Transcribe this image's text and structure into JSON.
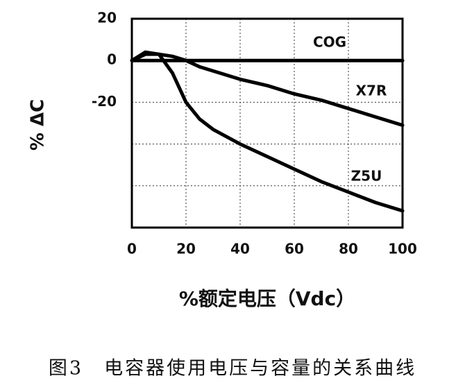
{
  "chart_data": {
    "type": "line",
    "caption": "图3　电容器使用电压与容量的关系曲线",
    "xlabel": "%额定电压（Vdc）",
    "ylabel": "% ΔC",
    "x": [
      0,
      5,
      10,
      15,
      20,
      25,
      30,
      40,
      50,
      60,
      70,
      80,
      90,
      100
    ],
    "series": [
      {
        "name": "COG",
        "color": "#000000",
        "values": [
          0,
          0,
          0,
          0,
          0,
          0,
          0,
          0,
          0,
          0,
          0,
          0,
          0,
          0
        ]
      },
      {
        "name": "X7R",
        "color": "#000000",
        "values": [
          0,
          3,
          3,
          2,
          0,
          -3,
          -5,
          -9,
          -12,
          -16,
          -19,
          -23,
          -27,
          -31
        ]
      },
      {
        "name": "Z5U",
        "color": "#000000",
        "values": [
          0,
          4,
          3,
          -6,
          -20,
          -28,
          -33,
          -40,
          -46,
          -52,
          -58,
          -63,
          -68,
          -72
        ]
      }
    ],
    "xlim": [
      0,
      100
    ],
    "xticks": [
      0,
      20,
      40,
      60,
      80,
      100
    ],
    "ylim": [
      -80,
      20
    ],
    "yticks": [
      20,
      0,
      -20
    ],
    "y_grid_lines": [
      -40,
      -60
    ],
    "grid": true
  }
}
